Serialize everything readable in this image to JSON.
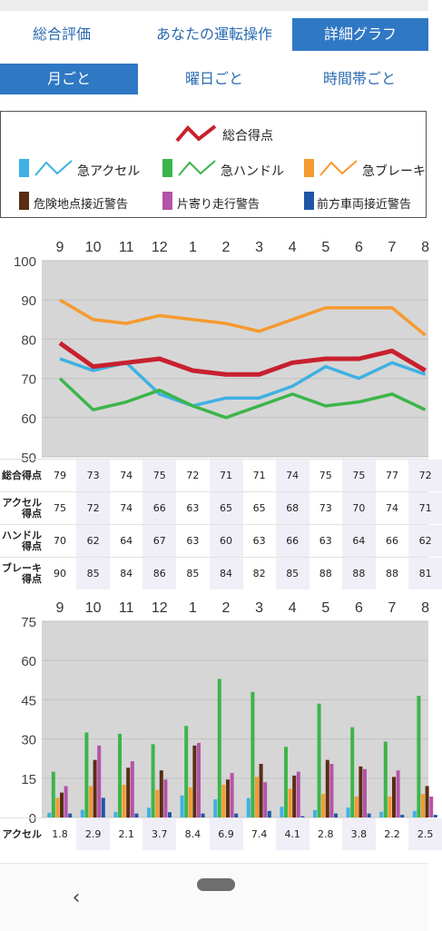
{
  "tabs": {
    "overall": "総合評価",
    "operation": "あなたの運転操作",
    "detail": "詳細グラフ"
  },
  "subtabs": {
    "monthly": "月ごと",
    "weekday": "曜日ごと",
    "timeslot": "時間帯ごと"
  },
  "legend": {
    "total": "総合得点",
    "accel": "急アクセル",
    "handle": "急ハンドル",
    "brake": "急ブレーキ",
    "danger": "危険地点接近警告",
    "lane": "片寄り走行警告",
    "front": "前方車両接近警告"
  },
  "colors": {
    "total": "#c8202f",
    "accel": "#3fb1e3",
    "handle": "#3cb54a",
    "brake": "#f59a2e",
    "danger": "#5a2d14",
    "lane": "#b553a8",
    "front": "#1f57a6",
    "active": "#2f78c4"
  },
  "rows": {
    "total": "総合得点",
    "accel": "アクセル得点",
    "handle": "ハンドル得点",
    "brake": "ブレーキ得点",
    "accel_count": "アクセル"
  },
  "chart_data": [
    {
      "type": "line",
      "categories": [
        "9",
        "10",
        "11",
        "12",
        "1",
        "2",
        "3",
        "4",
        "5",
        "6",
        "7",
        "8"
      ],
      "ylim": [
        50,
        100
      ],
      "yticks": [
        50,
        60,
        70,
        80,
        90,
        100
      ],
      "series": [
        {
          "name": "総合得点",
          "values": [
            79,
            73,
            74,
            75,
            72,
            71,
            71,
            74,
            75,
            75,
            77,
            72
          ]
        },
        {
          "name": "急アクセル",
          "values": [
            75,
            72,
            74,
            66,
            63,
            65,
            65,
            68,
            73,
            70,
            74,
            71
          ]
        },
        {
          "name": "急ハンドル",
          "values": [
            70,
            62,
            64,
            67,
            63,
            60,
            63,
            66,
            63,
            64,
            66,
            62
          ]
        },
        {
          "name": "急ブレーキ",
          "values": [
            90,
            85,
            84,
            86,
            85,
            84,
            82,
            85,
            88,
            88,
            88,
            81
          ]
        }
      ]
    },
    {
      "type": "bar",
      "categories": [
        "9",
        "10",
        "11",
        "12",
        "1",
        "2",
        "3",
        "4",
        "5",
        "6",
        "7",
        "8"
      ],
      "ylim": [
        0,
        75
      ],
      "yticks": [
        0,
        15,
        30,
        45,
        60,
        75
      ],
      "series": [
        {
          "name": "急アクセル",
          "values": [
            1.8,
            2.9,
            2.1,
            3.7,
            8.4,
            6.9,
            7.4,
            4.1,
            2.8,
            3.8,
            2.2,
            2.5
          ]
        },
        {
          "name": "急ハンドル",
          "values": [
            17.5,
            32.5,
            32,
            28,
            35,
            53,
            48,
            27,
            43.5,
            34.5,
            29,
            46.5
          ]
        },
        {
          "name": "急ブレーキ",
          "values": [
            7.5,
            12,
            12.5,
            10.5,
            11.5,
            12.5,
            15.5,
            11,
            9,
            8,
            8,
            9
          ]
        },
        {
          "name": "危険地点接近警告",
          "values": [
            9.5,
            22,
            19,
            18,
            27.5,
            14.5,
            20.5,
            16,
            22,
            19.5,
            15.5,
            12
          ]
        },
        {
          "name": "片寄り走行警告",
          "values": [
            12,
            27.5,
            21.5,
            14.5,
            28.5,
            17,
            13.5,
            17.5,
            20.5,
            18.5,
            18,
            8
          ]
        },
        {
          "name": "前方車両接近警告",
          "values": [
            1.5,
            7.5,
            1.5,
            2,
            1.5,
            1.5,
            2.5,
            0.5,
            1.5,
            1.5,
            1,
            1
          ]
        }
      ]
    }
  ]
}
